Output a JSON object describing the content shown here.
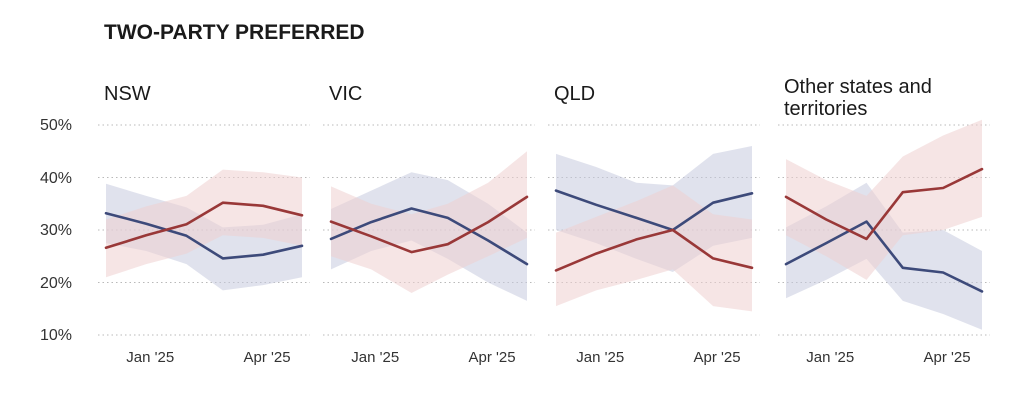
{
  "title": "TWO-PARTY PREFERRED",
  "colors": {
    "series_blue": "#3d4a7a",
    "series_red": "#993838",
    "band_blue": "#c7cade",
    "band_red": "#efcfcf",
    "grid": "#b9b9b9"
  },
  "chart_data": [
    {
      "type": "line",
      "title": "NSW",
      "x": [
        "2024-12-01",
        "2025-01-01",
        "2025-02-01",
        "2025-03-01",
        "2025-04-01",
        "2025-05-01"
      ],
      "xticks": [
        "Jan '25",
        "Apr '25"
      ],
      "yticks": [
        "50%",
        "40%",
        "30%",
        "20%",
        "10%"
      ],
      "ylim": [
        10,
        50
      ],
      "grid": true,
      "series": [
        {
          "color": "#3d4a7a",
          "values": [
            33.2,
            31.2,
            28.9,
            24.6,
            25.3,
            27.0
          ],
          "lower": [
            27.5,
            26.0,
            23.5,
            18.5,
            19.5,
            21.0
          ],
          "upper": [
            38.8,
            36.5,
            34.3,
            30.5,
            31.0,
            33.0
          ]
        },
        {
          "color": "#993838",
          "values": [
            26.6,
            29.0,
            31.1,
            35.2,
            34.6,
            32.8
          ],
          "lower": [
            21.0,
            23.5,
            25.5,
            29.0,
            28.5,
            27.0
          ],
          "upper": [
            32.0,
            34.5,
            36.5,
            41.5,
            41.0,
            40.0
          ]
        }
      ]
    },
    {
      "type": "line",
      "title": "VIC",
      "x": [
        "2024-12-01",
        "2025-01-01",
        "2025-02-01",
        "2025-03-01",
        "2025-04-01",
        "2025-05-01"
      ],
      "xticks": [
        "Jan '25",
        "Apr '25"
      ],
      "ylim": [
        10,
        50
      ],
      "grid": true,
      "series": [
        {
          "color": "#3d4a7a",
          "values": [
            28.3,
            31.5,
            34.1,
            32.3,
            28.0,
            23.5
          ],
          "lower": [
            22.5,
            26.0,
            28.0,
            24.5,
            20.0,
            16.5
          ],
          "upper": [
            34.0,
            37.5,
            41.0,
            39.5,
            35.0,
            29.5
          ]
        },
        {
          "color": "#993838",
          "values": [
            31.6,
            28.8,
            25.8,
            27.3,
            31.5,
            36.3
          ],
          "lower": [
            25.0,
            22.5,
            18.0,
            21.5,
            25.0,
            28.5
          ],
          "upper": [
            38.3,
            35.0,
            33.0,
            35.0,
            39.0,
            45.0
          ]
        }
      ]
    },
    {
      "type": "line",
      "title": "QLD",
      "x": [
        "2024-12-01",
        "2025-01-01",
        "2025-02-01",
        "2025-03-01",
        "2025-04-01",
        "2025-05-01"
      ],
      "xticks": [
        "Jan '25",
        "Apr '25"
      ],
      "ylim": [
        10,
        50
      ],
      "grid": true,
      "series": [
        {
          "color": "#3d4a7a",
          "values": [
            37.5,
            34.8,
            32.3,
            30.0,
            35.2,
            37.0
          ],
          "lower": [
            30.0,
            27.5,
            24.5,
            22.0,
            27.0,
            28.5
          ],
          "upper": [
            44.5,
            42.0,
            39.0,
            38.5,
            44.5,
            46.0
          ]
        },
        {
          "color": "#993838",
          "values": [
            22.3,
            25.5,
            28.2,
            30.0,
            24.6,
            22.8
          ],
          "lower": [
            15.5,
            18.5,
            20.5,
            22.5,
            15.5,
            14.5
          ],
          "upper": [
            29.5,
            32.5,
            35.5,
            38.5,
            33.0,
            32.0
          ]
        }
      ]
    },
    {
      "type": "line",
      "title": "Other states and territories",
      "x": [
        "2024-12-01",
        "2025-01-01",
        "2025-02-01",
        "2025-03-01",
        "2025-04-01",
        "2025-05-01"
      ],
      "xticks": [
        "Jan '25",
        "Apr '25"
      ],
      "ylim": [
        10,
        50
      ],
      "grid": true,
      "series": [
        {
          "color": "#3d4a7a",
          "values": [
            23.5,
            27.5,
            31.6,
            22.8,
            21.9,
            18.3
          ],
          "lower": [
            17.0,
            20.5,
            24.5,
            16.5,
            14.0,
            11.0
          ],
          "upper": [
            30.5,
            34.5,
            39.0,
            29.5,
            30.0,
            26.0
          ]
        },
        {
          "color": "#993838",
          "values": [
            36.3,
            32.0,
            28.3,
            37.2,
            38.0,
            41.6
          ],
          "lower": [
            29.0,
            25.0,
            20.5,
            29.0,
            30.0,
            32.5
          ],
          "upper": [
            43.5,
            39.5,
            36.5,
            44.0,
            48.0,
            51.0
          ]
        }
      ]
    }
  ]
}
